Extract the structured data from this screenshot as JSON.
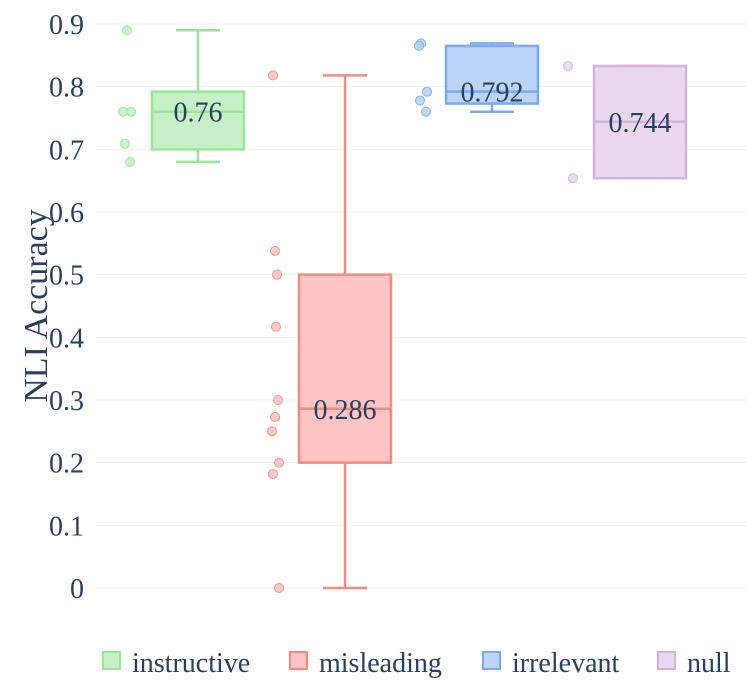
{
  "chart_data": {
    "type": "box",
    "ylabel": "NLI Accuracy",
    "xlabel": "",
    "title": "",
    "ylim": [
      0,
      0.9
    ],
    "yticks": [
      0,
      0.1,
      0.2,
      0.3,
      0.4,
      0.5,
      0.6,
      0.7,
      0.8,
      0.9
    ],
    "ytick_labels": [
      "0",
      "0.1",
      "0.2",
      "0.3",
      "0.4",
      "0.5",
      "0.6",
      "0.7",
      "0.8",
      "0.9"
    ],
    "grid": true,
    "legend_position": "bottom",
    "series": [
      {
        "name": "instructive",
        "color": "#99e699",
        "fill": "#c7f0c7",
        "min": 0.68,
        "q1": 0.7,
        "median": 0.76,
        "q3": 0.792,
        "max": 0.89,
        "median_label": "0.76",
        "points": [
          0.89,
          0.76,
          0.76,
          0.709,
          0.68
        ]
      },
      {
        "name": "misleading",
        "color": "#f28b82",
        "fill": "#ffc4c4",
        "min": 0.0,
        "q1": 0.2,
        "median": 0.286,
        "q3": 0.5,
        "max": 0.818,
        "median_label": "0.286",
        "points": [
          0.818,
          0.538,
          0.5,
          0.417,
          0.3,
          0.273,
          0.25,
          0.2,
          0.182,
          0.0
        ]
      },
      {
        "name": "irrelevant",
        "color": "#7aaaf0",
        "fill": "#bcd4f7",
        "min": 0.76,
        "q1": 0.773,
        "median": 0.792,
        "q3": 0.865,
        "max": 0.869,
        "median_label": "0.792",
        "points": [
          0.869,
          0.865,
          0.792,
          0.778,
          0.76
        ]
      },
      {
        "name": "null",
        "color": "#d7b2e0",
        "fill": "#e9d7f0",
        "min": 0.654,
        "q1": 0.654,
        "median": 0.744,
        "q3": 0.833,
        "max": 0.833,
        "median_label": "0.744",
        "points": [
          0.833,
          0.654
        ]
      }
    ]
  }
}
